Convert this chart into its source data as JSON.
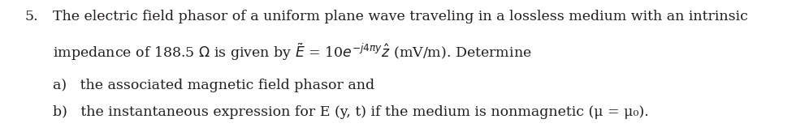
{
  "background_color": "#ffffff",
  "fig_width": 9.96,
  "fig_height": 1.63,
  "dpi": 100,
  "text_color": "#231f20",
  "font_size": 12.5,
  "number_text": "5.",
  "line1_text": "The electric field phasor of a uniform plane wave traveling in a lossless medium with an intrinsic",
  "line3_text": "a)   the associated magnetic field phasor and",
  "line4_text": "b)   the instantaneous expression for E (y, t) if the medium is nonmagnetic (μ = μ₀)."
}
